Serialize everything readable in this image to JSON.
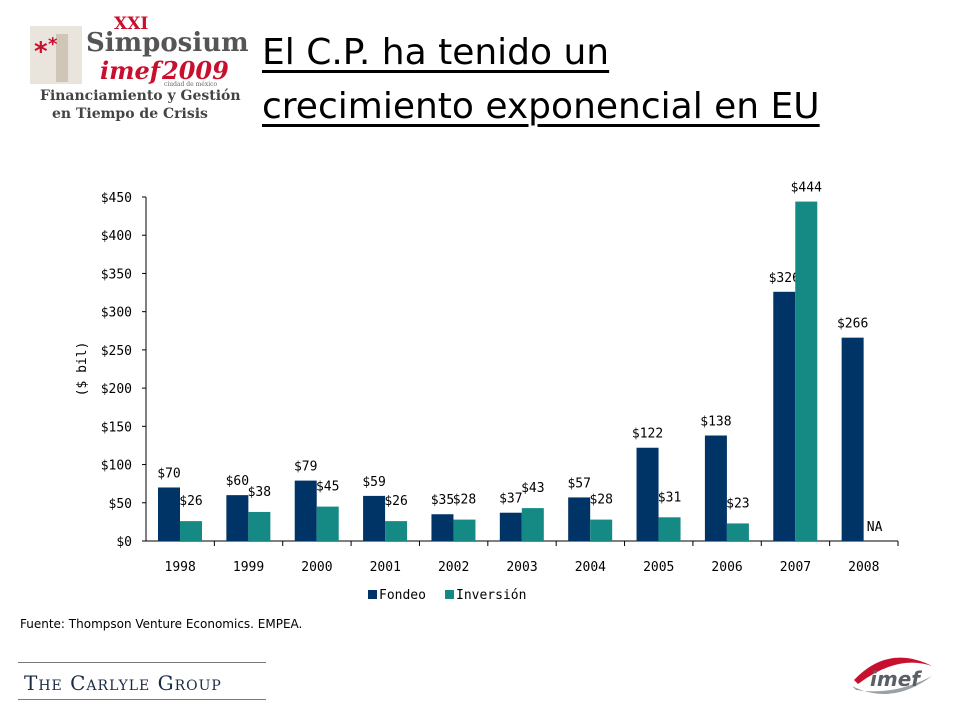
{
  "logo": {
    "edition": "XXI",
    "name": "Simposium",
    "brand": "imef",
    "year": "2009",
    "city": "ciudad de méxico",
    "tagline1": "Financiamiento y Gestión",
    "tagline2": "en Tiempo de Crisis"
  },
  "title_line1": "El C.P. ha tenido un",
  "title_line2": "crecimiento exponencial en EU",
  "source": "Fuente: Thompson Venture Economics. EMPEA.",
  "footer": {
    "company": "The Carlyle Group",
    "imef_logo": "imef"
  },
  "colors": {
    "fondeo": "#003366",
    "inversion": "#158A85",
    "accent_red": "#c8102e"
  },
  "chart_data": {
    "type": "bar",
    "ylabel": "($ bil)",
    "ylim": [
      0,
      450
    ],
    "yticks": [
      "$0",
      "$50",
      "$100",
      "$150",
      "$200",
      "$250",
      "$300",
      "$350",
      "$400",
      "$450"
    ],
    "categories": [
      "1998",
      "1999",
      "2000",
      "2001",
      "2002",
      "2003",
      "2004",
      "2005",
      "2006",
      "2007",
      "2008"
    ],
    "series": [
      {
        "name": "Fondeo",
        "color": "#003366",
        "values": [
          70,
          60,
          79,
          59,
          35,
          37,
          57,
          122,
          138,
          326,
          266
        ],
        "labels": [
          "$70",
          "$60",
          "$79",
          "$59",
          "$35",
          "$37",
          "$57",
          "$122",
          "$138",
          "$326",
          "$266"
        ]
      },
      {
        "name": "Inversión",
        "color": "#158A85",
        "values": [
          26,
          38,
          45,
          26,
          28,
          43,
          28,
          31,
          23,
          444,
          null
        ],
        "labels": [
          "$26",
          "$38",
          "$45",
          "$26",
          "$28",
          "$43",
          "$28",
          "$31",
          "$23",
          "$444",
          "NA"
        ]
      }
    ],
    "legend": "bottom"
  }
}
